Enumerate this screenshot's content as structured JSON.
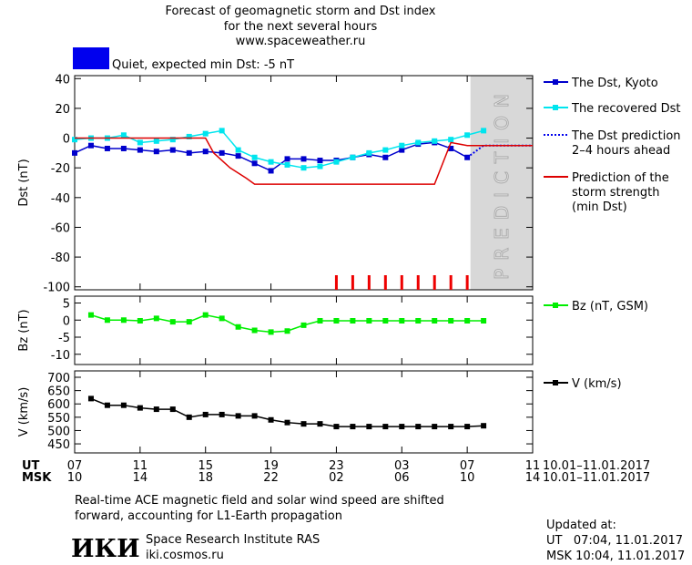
{
  "header": {
    "lines": [
      "Forecast of geomagnetic storm and Dst index",
      "for the next several hours",
      "www.spaceweather.ru"
    ]
  },
  "status": {
    "color": "#0000ee",
    "text": "Quiet, expected min Dst: -5 nT"
  },
  "time_axis": {
    "xlim": [
      7,
      35
    ],
    "ut_label": "UT",
    "msk_label": "MSK",
    "ut_ticks": [
      {
        "value": 7,
        "label": "07"
      },
      11,
      15,
      19,
      23,
      {
        "value": 27,
        "label": "03"
      },
      {
        "value": 31,
        "label": "07"
      },
      {
        "value": 35,
        "label": "11"
      }
    ],
    "msk_ticks": [
      {
        "value": 7,
        "label": "10"
      },
      {
        "value": 11,
        "label": "14"
      },
      {
        "value": 15,
        "label": "18"
      },
      {
        "value": 19,
        "label": "22"
      },
      {
        "value": 23,
        "label": "02"
      },
      {
        "value": 27,
        "label": "06"
      },
      {
        "value": 31,
        "label": "10"
      },
      {
        "value": 35,
        "label": "14"
      }
    ],
    "date_range_ut": "10.01–11.01.2017",
    "date_range_msk": "10.01–11.01.2017"
  },
  "chart_data": [
    {
      "type": "line",
      "ylabel": "Dst (nT)",
      "ylim": [
        -102,
        42
      ],
      "yticks": [
        40,
        20,
        0,
        -20,
        -40,
        -60,
        -80,
        -100
      ],
      "prediction": {
        "start": 31.2,
        "label": "PREDICTION"
      },
      "storm_markers": {
        "color": "#ee0000",
        "x": [
          23,
          24,
          25,
          26,
          27,
          28,
          29,
          30,
          31
        ]
      },
      "series": [
        {
          "name": "The Dst, Kyoto",
          "color": "#0000cc",
          "marker": "square",
          "x": [
            7,
            8,
            9,
            10,
            11,
            12,
            13,
            14,
            15,
            16,
            17,
            18,
            19,
            20,
            21,
            22,
            23,
            24,
            25,
            26,
            27,
            28,
            29,
            30,
            31
          ],
          "values": [
            -10,
            -5,
            -7,
            -7,
            -8,
            -9,
            -8,
            -10,
            -9,
            -10,
            -12,
            -17,
            -22,
            -14,
            -14,
            -15,
            -15,
            -13,
            -11,
            -13,
            -8,
            -4,
            -3,
            -7,
            -13
          ]
        },
        {
          "name": "The recovered Dst",
          "color": "#00e5ee",
          "marker": "square",
          "x": [
            7,
            8,
            9,
            10,
            11,
            12,
            13,
            14,
            15,
            16,
            17,
            18,
            19,
            20,
            21,
            22,
            23,
            24,
            25,
            26,
            27,
            28,
            29,
            30,
            31,
            32
          ],
          "values": [
            -1,
            0,
            0,
            2,
            -3,
            -2,
            -1,
            1,
            3,
            5,
            -8,
            -13,
            -16,
            -18,
            -20,
            -19,
            -16,
            -13,
            -10,
            -8,
            -5,
            -3,
            -2,
            -1,
            2,
            5
          ]
        },
        {
          "name": "The Dst prediction\n2–4 hours ahead",
          "color": "#0000ee",
          "dash": "dotted",
          "x": [
            31,
            32,
            35
          ],
          "values": [
            -13,
            -5,
            -5
          ]
        },
        {
          "name": "Prediction of the\nstorm strength\n(min Dst)",
          "color": "#dd0000",
          "x": [
            7,
            15,
            15.5,
            16.5,
            17.5,
            18,
            29,
            30,
            31,
            35
          ],
          "values": [
            0,
            0,
            -10,
            -20,
            -27,
            -31,
            -31,
            -3,
            -5,
            -5
          ]
        }
      ]
    },
    {
      "type": "line",
      "ylabel": "Bz (nT)",
      "ylim": [
        -13,
        7
      ],
      "yticks": [
        5,
        0,
        -5,
        -10
      ],
      "series": [
        {
          "name": "Bz (nT, GSM)",
          "color": "#00ee00",
          "marker": "square",
          "x": [
            8,
            9,
            10,
            11,
            12,
            13,
            14,
            15,
            16,
            17,
            18,
            19,
            20,
            21,
            22,
            23,
            24,
            25,
            26,
            27,
            28,
            29,
            30,
            31,
            32
          ],
          "values": [
            1.5,
            0,
            0,
            -0.2,
            0.5,
            -0.5,
            -0.5,
            1.5,
            0.5,
            -2,
            -3,
            -3.5,
            -3.2,
            -1.5,
            -0.2,
            -0.2,
            -0.2,
            -0.2,
            -0.2,
            -0.2,
            -0.2,
            -0.2,
            -0.2,
            -0.2,
            -0.2
          ]
        }
      ]
    },
    {
      "type": "line",
      "ylabel": "V (km/s)",
      "ylim": [
        416,
        724
      ],
      "yticks": [
        700,
        650,
        600,
        550,
        500,
        450
      ],
      "series": [
        {
          "name": "V (km/s)",
          "color": "#000000",
          "marker": "square",
          "x": [
            8,
            9,
            10,
            11,
            12,
            13,
            14,
            15,
            16,
            17,
            18,
            19,
            20,
            21,
            22,
            23,
            24,
            25,
            26,
            27,
            28,
            29,
            30,
            31,
            32
          ],
          "values": [
            620,
            595,
            595,
            585,
            580,
            580,
            550,
            560,
            560,
            555,
            555,
            540,
            530,
            525,
            525,
            515,
            515,
            515,
            515,
            515,
            515,
            515,
            515,
            515,
            518
          ]
        }
      ]
    }
  ],
  "footer": {
    "note_lines": [
      "Real-time ACE magnetic field and solar wind speed are shifted",
      "forward, accounting for L1-Earth propagation"
    ],
    "logo": "ИКИ",
    "institute": "Space Research Institute RAS",
    "site": "iki.cosmos.ru",
    "updated_label": "Updated at:",
    "updated_ut": "UT   07:04, 11.01.2017",
    "updated_msk": "MSK 10:04, 11.01.2017"
  }
}
